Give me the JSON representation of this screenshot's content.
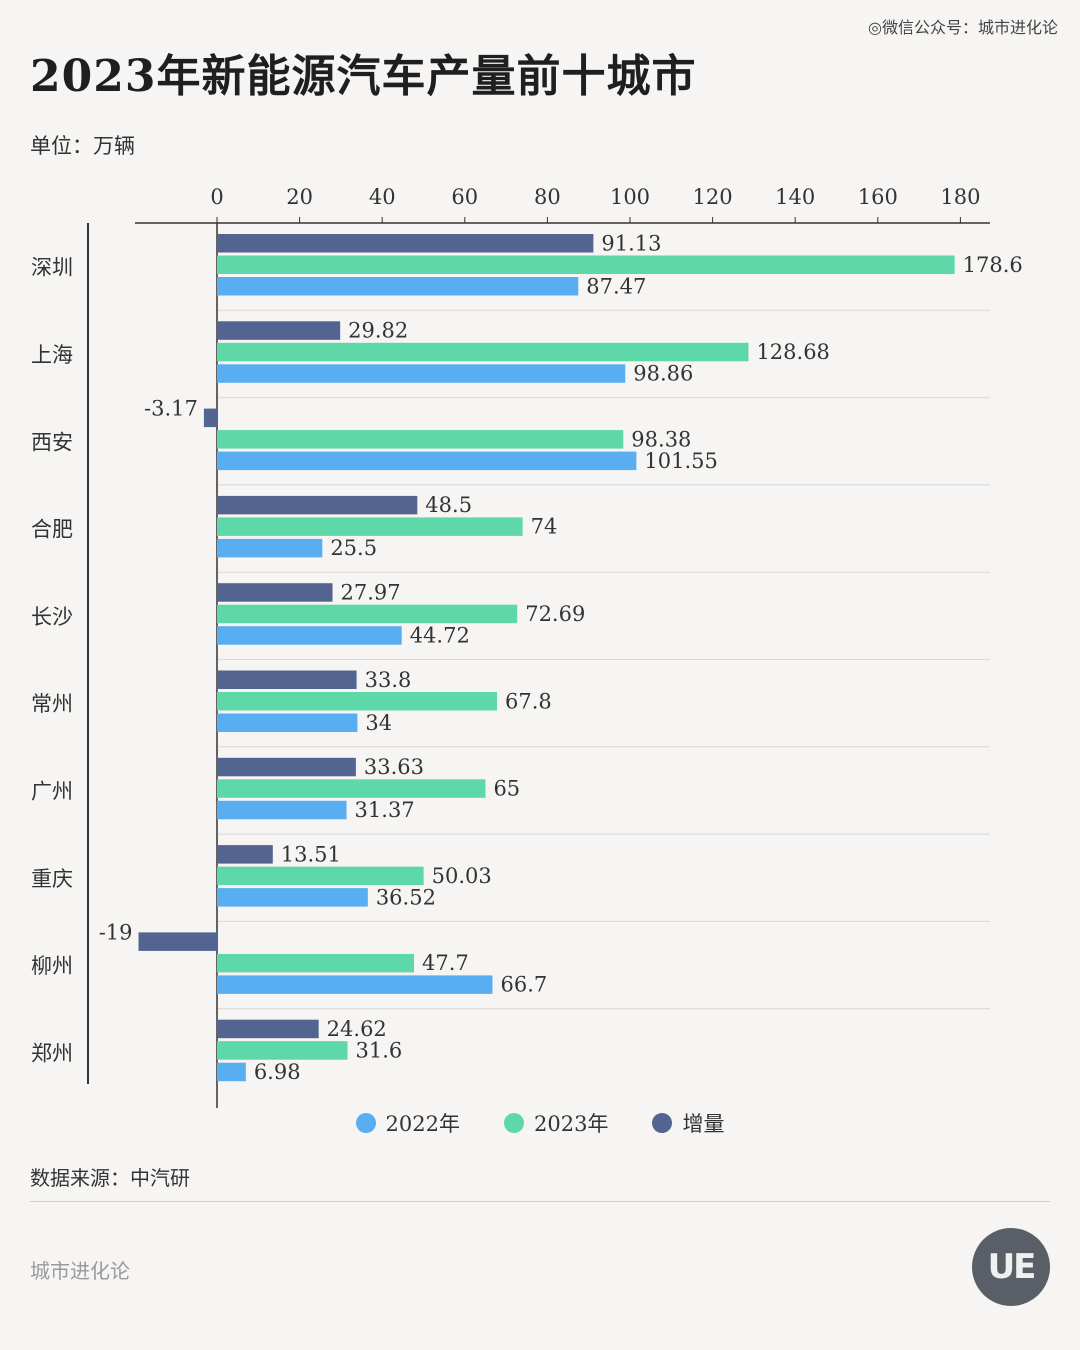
{
  "watermark": "◎微信公众号：城市进化论",
  "title": "2023年新能源汽车产量前十城市",
  "unit": "单位：万辆",
  "source": "数据来源：中汽研",
  "brand": "城市进化论",
  "logo_text": "UE",
  "colors": {
    "y2022": "#58aef0",
    "y2023": "#5ed8a8",
    "increase": "#52648f"
  },
  "chart_data": {
    "type": "bar",
    "orientation": "horizontal",
    "title": "2023年新能源汽车产量前十城市",
    "unit": "单位：万辆",
    "categories": [
      "深圳",
      "上海",
      "西安",
      "合肥",
      "长沙",
      "常州",
      "广州",
      "重庆",
      "柳州",
      "郑州"
    ],
    "series": [
      {
        "name": "增量",
        "values": [
          91.13,
          29.82,
          -3.17,
          48.5,
          27.97,
          33.8,
          33.63,
          13.51,
          -19,
          24.62
        ]
      },
      {
        "name": "2023年",
        "values": [
          178.6,
          128.68,
          98.38,
          74,
          72.69,
          67.8,
          65,
          50.03,
          47.7,
          31.6
        ]
      },
      {
        "name": "2022年",
        "values": [
          87.47,
          98.86,
          101.55,
          25.5,
          44.72,
          34,
          31.37,
          36.52,
          66.7,
          6.98
        ]
      }
    ],
    "xlim": [
      -20,
      180
    ],
    "xticks": [
      0,
      20,
      40,
      60,
      80,
      100,
      120,
      140,
      160,
      180
    ],
    "grid": true,
    "legend_position": "bottom",
    "legend": [
      "2022年",
      "2023年",
      "增量"
    ]
  }
}
